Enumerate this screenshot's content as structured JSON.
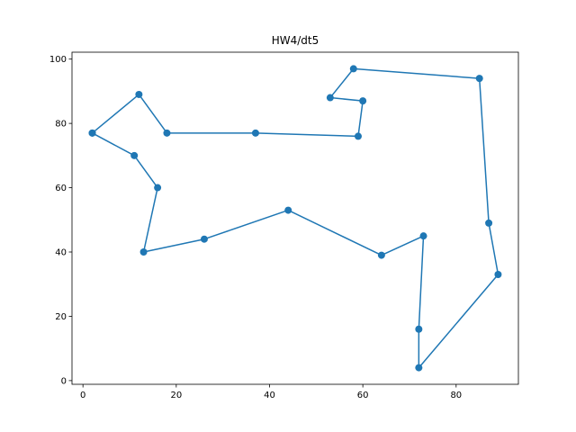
{
  "chart_data": {
    "type": "line",
    "title": "HW4/dt5",
    "xlabel": "",
    "ylabel": "",
    "xlim": [
      -2.35,
      93.35
    ],
    "ylim": [
      -1.15,
      102.15
    ],
    "xticks": [
      0,
      20,
      40,
      60,
      80
    ],
    "yticks": [
      0,
      20,
      40,
      60,
      80,
      100
    ],
    "grid": false,
    "series": [
      {
        "color": "#1f77b4",
        "marker": "circle",
        "x": [
          2,
          12,
          18,
          37,
          59,
          60,
          53,
          58,
          85,
          87,
          89,
          72,
          72,
          73,
          64,
          44,
          26,
          13,
          16,
          11,
          2
        ],
        "y": [
          77,
          89,
          77,
          77,
          76,
          87,
          88,
          97,
          94,
          49,
          33,
          4,
          16,
          45,
          39,
          53,
          44,
          40,
          60,
          70,
          77
        ]
      }
    ]
  }
}
